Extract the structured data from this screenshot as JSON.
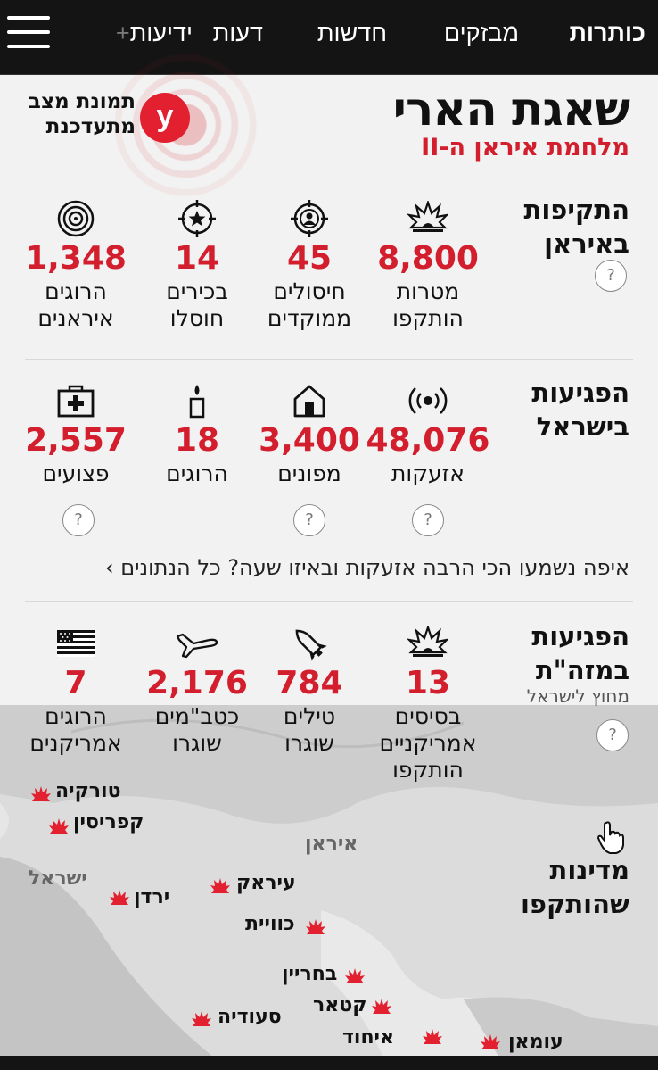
{
  "nav": {
    "items": [
      "כותרות",
      "מבזקים",
      "חדשות",
      "דעות",
      "ידיעות"
    ],
    "plus_suffix": "+",
    "menu_icon": "hamburger-menu-icon"
  },
  "header": {
    "title": "שאגת הארי",
    "subtitle": "מלחמת איראן ה-II",
    "live_label_line1": "תמונת מצב",
    "live_label_line2": "מתעדכנת",
    "logo_letter": "y",
    "accent_color": "#d21e2d"
  },
  "attacks_iran": {
    "label_line1": "התקיפות",
    "label_line2": "באיראן",
    "stats": [
      {
        "icon": "explosion-icon",
        "value": "8,800",
        "label_line1": "מטרות",
        "label_line2": "הותקפו"
      },
      {
        "icon": "crosshair-person-icon",
        "value": "45",
        "label_line1": "חיסולים",
        "label_line2": "ממוקדים"
      },
      {
        "icon": "star-target-icon",
        "value": "14",
        "label_line1": "בכירים",
        "label_line2": "חוסלו"
      },
      {
        "icon": "concentric-target-icon",
        "value": "1,348",
        "label_line1": "הרוגים",
        "label_line2": "איראנים"
      }
    ]
  },
  "hits_israel": {
    "label_line1": "הפגיעות",
    "label_line2": "בישראל",
    "stats": [
      {
        "icon": "siren-icon",
        "value": "48,076",
        "label": "אזעקות"
      },
      {
        "icon": "house-icon",
        "value": "3,400",
        "label": "מפונים"
      },
      {
        "icon": "candle-icon",
        "value": "18",
        "label": "הרוגים"
      },
      {
        "icon": "first-aid-kit-icon",
        "value": "2,557",
        "label": "פצועים"
      }
    ],
    "link_text": "איפה נשמעו הכי הרבה אזעקות ובאיזו שעה? כל הנתונים ›"
  },
  "hits_middle_east": {
    "label_line1": "הפגיעות",
    "label_line2": "במזה\"ת",
    "sub": "מחוץ לישראל",
    "stats": [
      {
        "icon": "explosion-icon",
        "value": "13",
        "label_line1": "בסיסים",
        "label_line2": "אמריקניים",
        "label_line3": "הותקפו"
      },
      {
        "icon": "missile-icon",
        "value": "784",
        "label_line1": "טילים",
        "label_line2": "שוגרו"
      },
      {
        "icon": "plane-icon",
        "value": "2,176",
        "label_line1": "כטב\"מים",
        "label_line2": "שוגרו"
      },
      {
        "icon": "us-flag-icon",
        "value": "7",
        "label_line1": "הרוגים",
        "label_line2": "אמריקנים"
      }
    ]
  },
  "countries": {
    "label_line1": "מדינות",
    "label_line2": "שהותקפו",
    "attacked": [
      "טורקיה",
      "קפריסין",
      "ירדן",
      "עיראק",
      "כוויית",
      "בחריין",
      "קטאר",
      "סעודיה",
      "איחוד האמירויות",
      "עומאן"
    ],
    "neutral": [
      "ישראל",
      "איראן"
    ],
    "help_text": "?"
  }
}
